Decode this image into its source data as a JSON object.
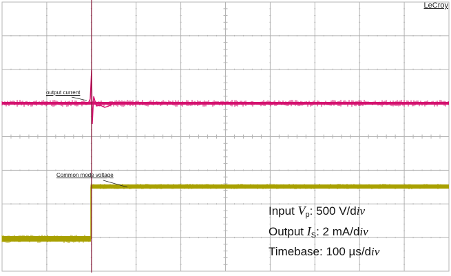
{
  "scope": {
    "brand": "LeCroy",
    "colors": {
      "grid": "#b5b5b5",
      "trigger_marker": "#8a1a3a",
      "current_trace": "#d4106e",
      "voltage_trace": "#a8a000"
    },
    "traces": {
      "current_label": "output current",
      "voltage_label": "Common mode voltage"
    },
    "settings": {
      "line1_prefix": "Input ",
      "line1_symbol": "V",
      "line1_sub": "p",
      "line1_value": ": 500 V/d",
      "line1_unit_it": "iv",
      "line2_prefix": "Output ",
      "line2_symbol": "I",
      "line2_sub": "S",
      "line2_value": ": 2 mA/d",
      "line2_unit_it": "iv",
      "line3_value": "Timebase: 100 µs/d",
      "line3_unit_it": "iv"
    }
  }
}
